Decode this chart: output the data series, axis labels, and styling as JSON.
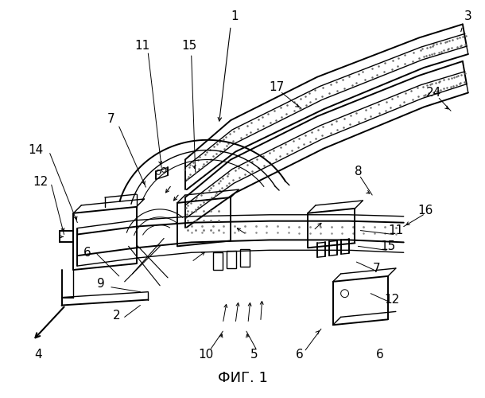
{
  "title": "ФИГ. 1",
  "title_fontsize": 13,
  "bg_color": "#ffffff",
  "line_color": "#000000",
  "label_fontsize": 11,
  "figsize": [
    6.1,
    5.0
  ],
  "dpi": 100
}
